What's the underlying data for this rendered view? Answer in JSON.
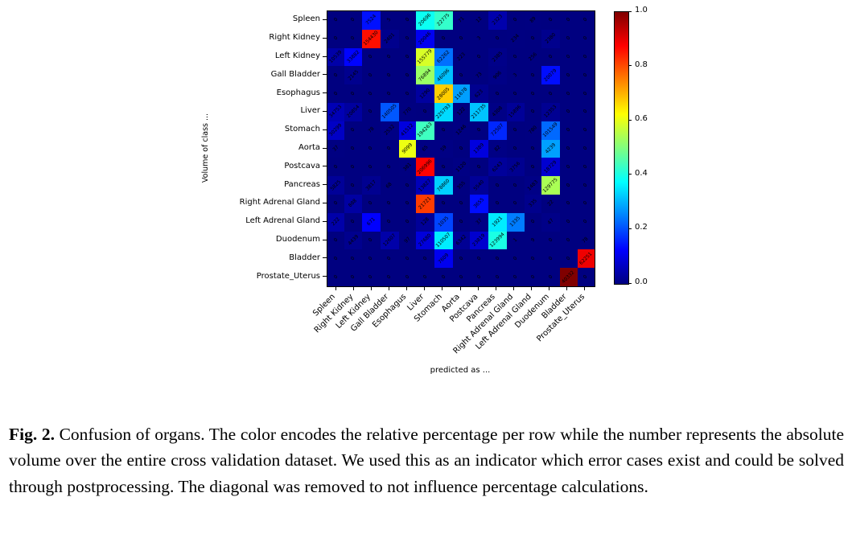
{
  "chart_data": {
    "type": "heatmap",
    "title": "Confusion of organs",
    "xlabel": "predicted as ...",
    "ylabel": "Volume of class ...",
    "colormap": "jet",
    "color_encoding": "relative percentage per row",
    "number_encoding": "absolute volume over the entire cross validation dataset",
    "diagonal": "removed (shown as 0)",
    "colorbar_range": [
      0.0,
      1.0
    ],
    "colorbar_ticks": [
      "1.0",
      "0.8",
      "0.6",
      "0.4",
      "0.2",
      "0.0"
    ],
    "x_categories": [
      "Spleen",
      "Right Kidney",
      "Left Kidney",
      "Gall Bladder",
      "Esophagus",
      "Liver",
      "Stomach",
      "Aorta",
      "Postcava",
      "Pancreas",
      "Right Adrenal Gland",
      "Left Adrenal Gland",
      "Duodenum",
      "Bladder",
      "Prostate_Uterus"
    ],
    "y_categories": [
      "Spleen",
      "Right Kidney",
      "Left Kidney",
      "Gall Bladder",
      "Esophagus",
      "Liver",
      "Stomach",
      "Aorta",
      "Postcava",
      "Pancreas",
      "Right Adrenal Gland",
      "Left Adrenal Gland",
      "Duodenum",
      "Bladder",
      "Prostate_Uterus"
    ],
    "matrix": [
      [
        0,
        0,
        7524,
        5,
        0,
        20696,
        22775,
        71,
        12,
        2323,
        0,
        89,
        0,
        0,
        0
      ],
      [
        0,
        0,
        154430,
        2401,
        0,
        20046,
        0,
        0,
        3,
        0,
        234,
        0,
        2380,
        0,
        0
      ],
      [
        10539,
        33882,
        0,
        0,
        0,
        155779,
        62262,
        223,
        0,
        2385,
        0,
        256,
        0,
        0,
        0
      ],
      [
        0,
        2145,
        0,
        0,
        0,
        76894,
        46096,
        0,
        73,
        906,
        3,
        0,
        20079,
        0,
        0
      ],
      [
        0,
        0,
        0,
        0,
        0,
        1290,
        28005,
        11678,
        623,
        0,
        0,
        0,
        0,
        0,
        0
      ],
      [
        34753,
        20854,
        0,
        140505,
        770,
        0,
        225793,
        122,
        211735,
        4308,
        15896,
        0,
        12353,
        0,
        0
      ],
      [
        30299,
        0,
        78,
        2532,
        41512,
        194263,
        0,
        1246,
        0,
        72507,
        0,
        780,
        101549,
        0,
        0
      ],
      [
        37,
        0,
        0,
        0,
        9099,
        65,
        59,
        0,
        1389,
        82,
        0,
        0,
        4239,
        0,
        0
      ],
      [
        0,
        0,
        0,
        0,
        381,
        206996,
        0,
        1120,
        0,
        6243,
        3756,
        0,
        18729,
        0,
        0
      ],
      [
        5825,
        0,
        3817,
        68,
        0,
        13827,
        78860,
        355,
        5540,
        0,
        0,
        1483,
        129775,
        0,
        0
      ],
      [
        0,
        888,
        0,
        0,
        0,
        21721,
        0,
        0,
        3655,
        0,
        0,
        335,
        22,
        0,
        0
      ],
      [
        222,
        0,
        671,
        0,
        0,
        128,
        1035,
        0,
        37,
        1921,
        1335,
        0,
        47,
        0,
        0
      ],
      [
        0,
        4439,
        0,
        12607,
        97,
        27680,
        110507,
        6342,
        23819,
        123994,
        1,
        9,
        0,
        0,
        78
      ],
      [
        0,
        0,
        0,
        0,
        0,
        0,
        7609,
        0,
        0,
        0,
        0,
        0,
        0,
        0,
        62251
      ],
      [
        0,
        0,
        0,
        0,
        0,
        0,
        0,
        0,
        0,
        0,
        0,
        0,
        0,
        40332,
        0
      ]
    ],
    "grid": false,
    "legend_position": "right-colorbar"
  },
  "caption": {
    "label": "Fig. 2.",
    "text": " Confusion of organs. The color encodes the relative percentage per row while the number represents the absolute volume over the entire cross validation dataset. We used this as an indicator which error cases exist and could be solved through postprocessing. The diagonal was removed to not influence percentage calculations."
  }
}
